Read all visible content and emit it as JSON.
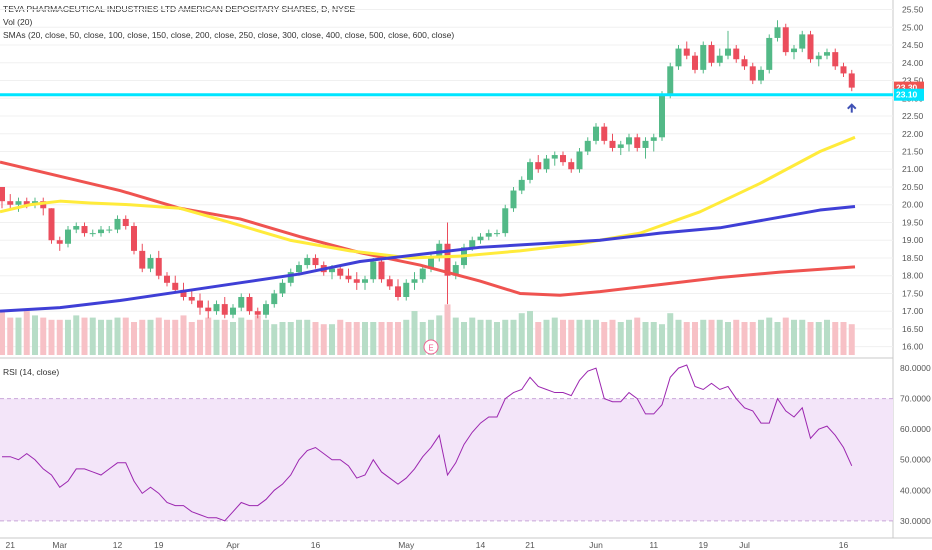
{
  "header": {
    "title": "TEVA PHARMACEUTICAL INDUSTRIES LTD AMERICAN DEPOSITARY SHARES, D, NYSE",
    "volume_label": "Vol (20)",
    "sma_label": "SMAs (20, close, 50, close, 100, close, 150, close, 200, close, 250, close, 300, close, 400, close, 500, close, 600, close)",
    "rsi_label": "RSI (14, close)"
  },
  "price_axis": {
    "ticks": [
      "16.00",
      "16.50",
      "17.00",
      "17.50",
      "18.00",
      "18.50",
      "19.00",
      "19.50",
      "20.00",
      "20.50",
      "21.00",
      "21.50",
      "22.00",
      "22.50",
      "23.00",
      "23.50",
      "24.00",
      "24.50",
      "25.00",
      "25.50"
    ],
    "current_price": "23.30",
    "level_price": "23.10"
  },
  "rsi_axis": {
    "ticks": [
      "30.0000",
      "40.0000",
      "50.0000",
      "60.0000",
      "70.0000",
      "80.0000"
    ]
  },
  "time_axis": {
    "labels": [
      "21",
      "Mar",
      "12",
      "19",
      "Apr",
      "16",
      "May",
      "14",
      "21",
      "Jun",
      "11",
      "19",
      "Jul",
      "16"
    ]
  },
  "earnings_marker": "E",
  "colors": {
    "up": "#53b987",
    "down": "#eb4d5c",
    "vol_up": "#b7ddc7",
    "vol_down": "#f7c1c6",
    "horizontal_line": "#00e5ff",
    "sma_yellow": "#ffeb3b",
    "sma_blue": "#3f3fd6",
    "sma_red": "#ef5350",
    "rsi_line": "#9c27b0",
    "rsi_band": "#f3e5f9",
    "current_tag": "#ef5350",
    "level_tag": "#00e5ff",
    "arrow": "#3f51b5"
  },
  "chart_data": {
    "type": "candlestick",
    "candles": [
      [
        20.5,
        20.5,
        19.9,
        20.1
      ],
      [
        20.1,
        20.3,
        19.9,
        20.0
      ],
      [
        20.0,
        20.2,
        19.8,
        20.1
      ],
      [
        20.1,
        20.2,
        19.9,
        20.0
      ],
      [
        20.0,
        20.2,
        19.9,
        20.1
      ],
      [
        20.1,
        20.2,
        19.7,
        19.9
      ],
      [
        19.9,
        19.9,
        18.9,
        19.0
      ],
      [
        19.0,
        19.1,
        18.7,
        18.9
      ],
      [
        18.9,
        19.4,
        18.8,
        19.3
      ],
      [
        19.3,
        19.5,
        19.2,
        19.4
      ],
      [
        19.4,
        19.5,
        19.1,
        19.2
      ],
      [
        19.2,
        19.3,
        19.1,
        19.2
      ],
      [
        19.2,
        19.4,
        19.1,
        19.3
      ],
      [
        19.3,
        19.4,
        19.2,
        19.3
      ],
      [
        19.3,
        19.7,
        19.2,
        19.6
      ],
      [
        19.6,
        19.7,
        19.3,
        19.4
      ],
      [
        19.4,
        19.5,
        18.6,
        18.7
      ],
      [
        18.7,
        18.9,
        18.1,
        18.2
      ],
      [
        18.2,
        18.6,
        18.1,
        18.5
      ],
      [
        18.5,
        18.7,
        17.9,
        18.0
      ],
      [
        18.0,
        18.1,
        17.7,
        17.8
      ],
      [
        17.8,
        18.0,
        17.5,
        17.6
      ],
      [
        17.6,
        17.8,
        17.3,
        17.4
      ],
      [
        17.4,
        17.6,
        17.2,
        17.3
      ],
      [
        17.3,
        17.5,
        16.9,
        17.1
      ],
      [
        17.1,
        17.3,
        16.8,
        17.0
      ],
      [
        17.0,
        17.3,
        16.9,
        17.2
      ],
      [
        17.2,
        17.4,
        16.8,
        16.9
      ],
      [
        16.9,
        17.2,
        16.8,
        17.1
      ],
      [
        17.1,
        17.5,
        17.0,
        17.4
      ],
      [
        17.4,
        17.5,
        16.9,
        17.0
      ],
      [
        17.0,
        17.1,
        16.8,
        16.9
      ],
      [
        16.9,
        17.3,
        16.8,
        17.2
      ],
      [
        17.2,
        17.6,
        17.1,
        17.5
      ],
      [
        17.5,
        17.9,
        17.4,
        17.8
      ],
      [
        17.8,
        18.2,
        17.7,
        18.1
      ],
      [
        18.1,
        18.4,
        18.0,
        18.3
      ],
      [
        18.3,
        18.6,
        18.2,
        18.5
      ],
      [
        18.5,
        18.6,
        18.2,
        18.3
      ],
      [
        18.3,
        18.4,
        18.0,
        18.1
      ],
      [
        18.1,
        18.3,
        17.9,
        18.2
      ],
      [
        18.2,
        18.3,
        17.9,
        18.0
      ],
      [
        18.0,
        18.2,
        17.8,
        17.9
      ],
      [
        17.9,
        18.1,
        17.6,
        17.8
      ],
      [
        17.8,
        18.0,
        17.6,
        17.9
      ],
      [
        17.9,
        18.5,
        17.8,
        18.4
      ],
      [
        18.4,
        18.5,
        17.8,
        17.9
      ],
      [
        17.9,
        18.0,
        17.6,
        17.7
      ],
      [
        17.7,
        17.9,
        17.3,
        17.4
      ],
      [
        17.4,
        17.9,
        17.3,
        17.8
      ],
      [
        17.8,
        18.1,
        17.6,
        17.9
      ],
      [
        17.9,
        18.3,
        17.8,
        18.2
      ],
      [
        18.2,
        18.6,
        18.1,
        18.5
      ],
      [
        18.5,
        19.0,
        18.4,
        18.9
      ],
      [
        18.9,
        19.5,
        17.2,
        18.0
      ],
      [
        18.0,
        18.4,
        17.9,
        18.3
      ],
      [
        18.3,
        18.9,
        18.2,
        18.8
      ],
      [
        18.8,
        19.1,
        18.7,
        19.0
      ],
      [
        19.0,
        19.2,
        18.9,
        19.1
      ],
      [
        19.1,
        19.3,
        19.0,
        19.2
      ],
      [
        19.2,
        19.3,
        19.1,
        19.2
      ],
      [
        19.2,
        20.0,
        19.1,
        19.9
      ],
      [
        19.9,
        20.5,
        19.8,
        20.4
      ],
      [
        20.4,
        20.8,
        20.3,
        20.7
      ],
      [
        20.7,
        21.3,
        20.6,
        21.2
      ],
      [
        21.2,
        21.4,
        20.9,
        21.0
      ],
      [
        21.0,
        21.4,
        20.9,
        21.3
      ],
      [
        21.3,
        21.5,
        21.1,
        21.4
      ],
      [
        21.4,
        21.5,
        21.1,
        21.2
      ],
      [
        21.2,
        21.3,
        20.9,
        21.0
      ],
      [
        21.0,
        21.6,
        20.9,
        21.5
      ],
      [
        21.5,
        21.9,
        21.4,
        21.8
      ],
      [
        21.8,
        22.3,
        21.7,
        22.2
      ],
      [
        22.2,
        22.3,
        21.7,
        21.8
      ],
      [
        21.8,
        22.0,
        21.5,
        21.6
      ],
      [
        21.6,
        21.8,
        21.4,
        21.7
      ],
      [
        21.7,
        22.0,
        21.5,
        21.9
      ],
      [
        21.9,
        22.0,
        21.5,
        21.6
      ],
      [
        21.6,
        21.9,
        21.3,
        21.8
      ],
      [
        21.8,
        22.0,
        21.5,
        21.9
      ],
      [
        21.9,
        23.2,
        21.8,
        23.1
      ],
      [
        23.1,
        24.0,
        23.0,
        23.9
      ],
      [
        23.9,
        24.5,
        23.8,
        24.4
      ],
      [
        24.4,
        24.6,
        24.1,
        24.2
      ],
      [
        24.2,
        24.3,
        23.7,
        23.8
      ],
      [
        23.8,
        24.6,
        23.7,
        24.5
      ],
      [
        24.5,
        24.6,
        23.9,
        24.0
      ],
      [
        24.0,
        24.4,
        23.9,
        24.2
      ],
      [
        24.2,
        24.9,
        24.1,
        24.4
      ],
      [
        24.4,
        24.5,
        24.0,
        24.1
      ],
      [
        24.1,
        24.2,
        23.8,
        23.9
      ],
      [
        23.9,
        24.0,
        23.4,
        23.5
      ],
      [
        23.5,
        23.9,
        23.4,
        23.8
      ],
      [
        23.8,
        24.8,
        23.7,
        24.7
      ],
      [
        24.7,
        25.2,
        24.6,
        25.0
      ],
      [
        25.0,
        25.1,
        24.2,
        24.3
      ],
      [
        24.3,
        24.5,
        24.1,
        24.4
      ],
      [
        24.4,
        24.9,
        24.3,
        24.8
      ],
      [
        24.8,
        24.9,
        24.0,
        24.1
      ],
      [
        24.1,
        24.3,
        23.9,
        24.2
      ],
      [
        24.2,
        24.4,
        24.1,
        24.3
      ],
      [
        24.3,
        24.4,
        23.8,
        23.9
      ],
      [
        23.9,
        24.0,
        23.6,
        23.7
      ],
      [
        23.7,
        23.8,
        23.2,
        23.3
      ]
    ],
    "volume": [
      2.0,
      1.7,
      1.7,
      2.0,
      1.8,
      1.7,
      1.6,
      1.6,
      1.6,
      1.8,
      1.7,
      1.7,
      1.6,
      1.6,
      1.7,
      1.7,
      1.5,
      1.6,
      1.6,
      1.7,
      1.6,
      1.6,
      1.8,
      1.5,
      1.6,
      1.7,
      1.6,
      1.6,
      1.5,
      1.7,
      1.6,
      1.8,
      1.6,
      1.4,
      1.5,
      1.5,
      1.6,
      1.6,
      1.5,
      1.4,
      1.4,
      1.6,
      1.5,
      1.5,
      1.5,
      1.5,
      1.5,
      1.5,
      1.5,
      1.6,
      2.0,
      1.5,
      1.6,
      1.8,
      2.3,
      1.7,
      1.5,
      1.7,
      1.6,
      1.6,
      1.5,
      1.6,
      1.6,
      1.9,
      2.0,
      1.5,
      1.6,
      1.7,
      1.6,
      1.6,
      1.6,
      1.6,
      1.6,
      1.5,
      1.6,
      1.5,
      1.6,
      1.7,
      1.5,
      1.5,
      1.4,
      1.9,
      1.6,
      1.5,
      1.5,
      1.6,
      1.6,
      1.6,
      1.5,
      1.6,
      1.5,
      1.5,
      1.6,
      1.7,
      1.5,
      1.7,
      1.6,
      1.6,
      1.5,
      1.5,
      1.6,
      1.5,
      1.5,
      1.4
    ],
    "sma_yellow": [
      [
        0,
        19.8
      ],
      [
        30,
        20.0
      ],
      [
        60,
        20.1
      ],
      [
        90,
        20.05
      ],
      [
        130,
        20.0
      ],
      [
        180,
        19.9
      ],
      [
        230,
        19.5
      ],
      [
        290,
        19.0
      ],
      [
        350,
        18.7
      ],
      [
        410,
        18.5
      ],
      [
        460,
        18.55
      ],
      [
        520,
        18.7
      ],
      [
        580,
        18.9
      ],
      [
        640,
        19.2
      ],
      [
        700,
        19.8
      ],
      [
        760,
        20.6
      ],
      [
        820,
        21.5
      ],
      [
        855,
        21.9
      ]
    ],
    "sma_blue": [
      [
        0,
        17.0
      ],
      [
        60,
        17.1
      ],
      [
        120,
        17.3
      ],
      [
        180,
        17.55
      ],
      [
        240,
        17.8
      ],
      [
        300,
        18.05
      ],
      [
        360,
        18.4
      ],
      [
        420,
        18.6
      ],
      [
        480,
        18.8
      ],
      [
        540,
        18.9
      ],
      [
        600,
        19.0
      ],
      [
        660,
        19.2
      ],
      [
        720,
        19.35
      ],
      [
        770,
        19.6
      ],
      [
        820,
        19.85
      ],
      [
        855,
        19.95
      ]
    ],
    "sma_red": [
      [
        0,
        21.2
      ],
      [
        60,
        20.8
      ],
      [
        120,
        20.4
      ],
      [
        180,
        19.9
      ],
      [
        240,
        19.6
      ],
      [
        300,
        19.1
      ],
      [
        360,
        18.65
      ],
      [
        420,
        18.3
      ],
      [
        480,
        17.85
      ],
      [
        520,
        17.5
      ],
      [
        560,
        17.45
      ],
      [
        600,
        17.55
      ],
      [
        660,
        17.75
      ],
      [
        720,
        17.95
      ],
      [
        780,
        18.1
      ],
      [
        855,
        18.25
      ]
    ],
    "rsi": [
      51,
      51,
      50,
      52,
      50,
      47,
      45,
      41,
      43,
      47,
      47,
      46,
      45,
      47,
      49,
      49,
      43,
      39,
      41,
      39,
      36,
      35,
      35,
      33,
      32,
      31,
      31,
      30,
      33,
      36,
      35,
      35,
      37,
      40,
      42,
      45,
      50,
      53,
      54,
      52,
      50,
      50,
      48,
      44,
      45,
      50,
      46,
      44,
      42,
      44,
      47,
      51,
      54,
      58,
      45,
      49,
      55,
      59,
      62,
      64,
      64,
      70,
      72,
      73,
      77,
      74,
      73,
      72,
      72,
      71,
      76,
      79,
      80,
      70,
      69,
      69,
      72,
      70,
      65,
      65,
      68,
      77,
      80,
      81,
      74,
      73,
      75,
      73,
      74,
      70,
      67,
      66,
      62,
      62,
      70,
      66,
      64,
      67,
      57,
      60,
      61,
      58,
      54,
      48
    ]
  }
}
